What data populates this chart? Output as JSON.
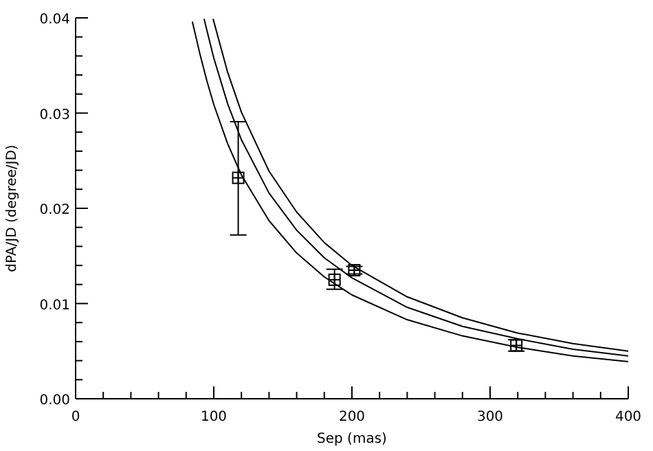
{
  "chart_data": {
    "type": "line",
    "xlabel": "Sep (mas)",
    "ylabel": "dPA/JD (degree/JD)",
    "xlim": [
      0,
      400
    ],
    "ylim": [
      0,
      0.04
    ],
    "xticks": [
      0,
      {
        "value": 20,
        "label": null
      },
      {
        "value": 40,
        "label": null
      },
      {
        "value": 60,
        "label": null
      },
      {
        "value": 80,
        "label": null
      },
      100,
      {
        "value": 120,
        "label": null
      },
      {
        "value": 140,
        "label": null
      },
      {
        "value": 160,
        "label": null
      },
      {
        "value": 180,
        "label": null
      },
      200,
      {
        "value": 220,
        "label": null
      },
      {
        "value": 240,
        "label": null
      },
      {
        "value": 260,
        "label": null
      },
      {
        "value": 280,
        "label": null
      },
      300,
      {
        "value": 320,
        "label": null
      },
      {
        "value": 340,
        "label": null
      },
      {
        "value": 360,
        "label": null
      },
      {
        "value": 380,
        "label": null
      },
      400
    ],
    "yticks": [
      {
        "value": 0,
        "label": "0.00"
      },
      {
        "value": 0.002,
        "label": null
      },
      {
        "value": 0.004,
        "label": null
      },
      {
        "value": 0.006,
        "label": null
      },
      {
        "value": 0.008,
        "label": null
      },
      {
        "value": 0.01,
        "label": "0.01"
      },
      {
        "value": 0.012,
        "label": null
      },
      {
        "value": 0.014,
        "label": null
      },
      {
        "value": 0.016,
        "label": null
      },
      {
        "value": 0.018,
        "label": null
      },
      {
        "value": 0.02,
        "label": "0.02"
      },
      {
        "value": 0.022,
        "label": null
      },
      {
        "value": 0.024,
        "label": null
      },
      {
        "value": 0.026,
        "label": null
      },
      {
        "value": 0.028,
        "label": null
      },
      {
        "value": 0.03,
        "label": "0.03"
      },
      {
        "value": 0.032,
        "label": null
      },
      {
        "value": 0.034,
        "label": null
      },
      {
        "value": 0.036,
        "label": null
      },
      {
        "value": 0.038,
        "label": null
      },
      {
        "value": 0.04,
        "label": "0.04"
      }
    ],
    "grid": false,
    "series": [
      {
        "color": "#000000",
        "marker": "none",
        "x": [
          84.5,
          90,
          95,
          100,
          110,
          120,
          140,
          160,
          180,
          200,
          240,
          280,
          320,
          360,
          400
        ],
        "values": [
          0.0396,
          0.0362,
          0.0334,
          0.0309,
          0.0268,
          0.0235,
          0.0187,
          0.0153,
          0.0128,
          0.0109,
          0.0083,
          0.0066,
          0.0054,
          0.0045,
          0.0039
        ]
      },
      {
        "color": "#000000",
        "marker": "none",
        "x": [
          93,
          95,
          100,
          110,
          120,
          140,
          160,
          180,
          200,
          240,
          280,
          320,
          360,
          400
        ],
        "values": [
          0.0399,
          0.0387,
          0.0358,
          0.031,
          0.0272,
          0.0216,
          0.0177,
          0.0148,
          0.0127,
          0.0096,
          0.0076,
          0.0063,
          0.0052,
          0.0045
        ]
      },
      {
        "color": "#000000",
        "marker": "none",
        "x": [
          99.5,
          110,
          120,
          140,
          160,
          180,
          200,
          240,
          280,
          320,
          360,
          400
        ],
        "values": [
          0.0399,
          0.0343,
          0.0301,
          0.0239,
          0.0196,
          0.0164,
          0.014,
          0.0107,
          0.0085,
          0.0069,
          0.0058,
          0.005
        ]
      },
      {
        "type": "scatter",
        "color": "#000000",
        "marker": "square",
        "x": [
          117.7,
          187.4,
          201.7,
          319
        ],
        "values": [
          0.0232,
          0.0125,
          0.0135,
          0.0056
        ],
        "errors": [
          [
            0.0172,
            0.0291
          ],
          [
            0.0115,
            0.0136
          ],
          [
            0.0131,
            0.0139
          ],
          [
            0.005,
            0.0062
          ]
        ]
      }
    ]
  }
}
